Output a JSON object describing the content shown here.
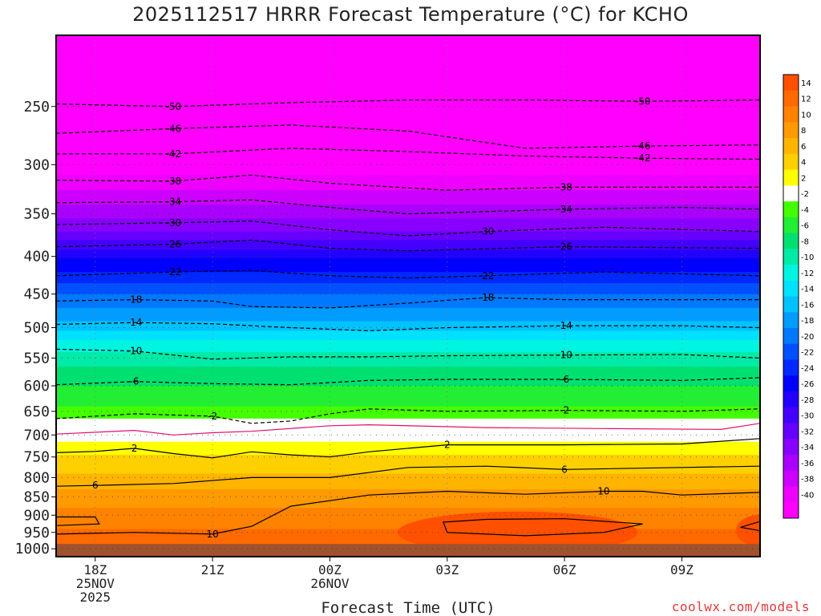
{
  "title": "2025112517 HRRR Forecast Temperature (°C) for KCHO",
  "credit": "coolwx.com/models",
  "chart_data": {
    "type": "heatmap",
    "title": "2025112517 HRRR Forecast Temperature (°C) for KCHO",
    "xlabel": "Forecast Time (UTC)",
    "ylabel": "",
    "x_ticks": [
      {
        "hour": 18,
        "lines": [
          "18Z",
          "25NOV",
          "2025"
        ]
      },
      {
        "hour": 21,
        "lines": [
          "21Z"
        ]
      },
      {
        "hour": 24,
        "lines": [
          "00Z",
          "26NOV"
        ]
      },
      {
        "hour": 27,
        "lines": [
          "03Z"
        ]
      },
      {
        "hour": 30,
        "lines": [
          "06Z"
        ]
      },
      {
        "hour": 33,
        "lines": [
          "09Z"
        ]
      }
    ],
    "xlim": [
      17,
      35
    ],
    "y_ticks": [
      "250",
      "300",
      "350",
      "400",
      "450",
      "500",
      "550",
      "600",
      "650",
      "700",
      "750",
      "800",
      "850",
      "900",
      "950",
      "1000"
    ],
    "ylim_hpa": [
      200,
      1025
    ],
    "y_scale": "log",
    "surface_pressure_hpa": 1000,
    "grid": "dotted",
    "colorbar": {
      "labels": [
        "14",
        "12",
        "10",
        "8",
        "6",
        "4",
        "2",
        "-2",
        "-4",
        "-6",
        "-8",
        "-10",
        "-12",
        "-14",
        "-16",
        "-18",
        "-20",
        "-22",
        "-24",
        "-26",
        "-28",
        "-30",
        "-32",
        "-34",
        "-36",
        "-38",
        "-40"
      ],
      "colors": [
        "#ff5000",
        "#ff6a00",
        "#ff8200",
        "#ff9a00",
        "#ffb400",
        "#ffd000",
        "#ffff00",
        "#ffffff",
        "#44ff00",
        "#22ee33",
        "#00e070",
        "#00eaa8",
        "#00f5e0",
        "#00e0ff",
        "#00c2ff",
        "#009cff",
        "#0078ff",
        "#0050ff",
        "#0028ff",
        "#0000ff",
        "#2200ff",
        "#4400ff",
        "#6600ff",
        "#8800ff",
        "#aa00ff",
        "#cc00ff",
        "#ee00ff",
        "#ff00ff"
      ]
    },
    "contours": [
      {
        "label": "-50",
        "dashed": true,
        "pts": [
          [
            17,
            248
          ],
          [
            20,
            250
          ],
          [
            23,
            247
          ],
          [
            26,
            245
          ],
          [
            29,
            245
          ],
          [
            32,
            246
          ],
          [
            35,
            245
          ]
        ]
      },
      {
        "label": "-46",
        "dashed": true,
        "pts": [
          [
            17,
            272
          ],
          [
            20,
            268
          ],
          [
            23,
            265
          ],
          [
            26,
            270
          ],
          [
            29,
            285
          ],
          [
            32,
            283
          ],
          [
            35,
            282
          ]
        ]
      },
      {
        "label": "-42",
        "dashed": true,
        "pts": [
          [
            17,
            290
          ],
          [
            20,
            290
          ],
          [
            23,
            285
          ],
          [
            26,
            288
          ],
          [
            29,
            292
          ],
          [
            32,
            294
          ],
          [
            35,
            295
          ]
        ]
      },
      {
        "label": "-38",
        "dashed": true,
        "pts": [
          [
            17,
            315
          ],
          [
            20,
            316
          ],
          [
            22,
            310
          ],
          [
            24,
            318
          ],
          [
            27,
            325
          ],
          [
            30,
            322
          ],
          [
            35,
            322
          ]
        ]
      },
      {
        "label": "-34",
        "dashed": true,
        "pts": [
          [
            17,
            338
          ],
          [
            20,
            337
          ],
          [
            22,
            335
          ],
          [
            24,
            343
          ],
          [
            26,
            350
          ],
          [
            30,
            345
          ],
          [
            33,
            343
          ],
          [
            35,
            345
          ]
        ]
      },
      {
        "label": "-30",
        "dashed": true,
        "pts": [
          [
            17,
            362
          ],
          [
            20,
            360
          ],
          [
            22,
            358
          ],
          [
            24,
            368
          ],
          [
            26,
            375
          ],
          [
            28,
            370
          ],
          [
            31,
            365
          ],
          [
            35,
            370
          ]
        ]
      },
      {
        "label": "-26",
        "dashed": true,
        "pts": [
          [
            17,
            388
          ],
          [
            20,
            385
          ],
          [
            22,
            380
          ],
          [
            24,
            390
          ],
          [
            26,
            393
          ],
          [
            30,
            388
          ],
          [
            35,
            390
          ]
        ]
      },
      {
        "label": "-22",
        "dashed": true,
        "pts": [
          [
            17,
            425
          ],
          [
            20,
            420
          ],
          [
            22,
            418
          ],
          [
            24,
            425
          ],
          [
            26,
            428
          ],
          [
            28,
            425
          ],
          [
            31,
            420
          ],
          [
            35,
            425
          ]
        ]
      },
      {
        "label": "-18",
        "dashed": true,
        "pts": [
          [
            17,
            460
          ],
          [
            19,
            458
          ],
          [
            21,
            460
          ],
          [
            22,
            468
          ],
          [
            24,
            470
          ],
          [
            26,
            463
          ],
          [
            28,
            455
          ],
          [
            30,
            458
          ],
          [
            35,
            458
          ]
        ]
      },
      {
        "label": "-14",
        "dashed": true,
        "pts": [
          [
            17,
            495
          ],
          [
            19,
            492
          ],
          [
            21,
            494
          ],
          [
            23,
            500
          ],
          [
            25,
            505
          ],
          [
            27,
            500
          ],
          [
            30,
            497
          ],
          [
            33,
            497
          ],
          [
            35,
            500
          ]
        ]
      },
      {
        "label": "-10",
        "dashed": true,
        "pts": [
          [
            17,
            535
          ],
          [
            19,
            538
          ],
          [
            21,
            552
          ],
          [
            23,
            548
          ],
          [
            25,
            548
          ],
          [
            27,
            546
          ],
          [
            30,
            545
          ],
          [
            33,
            544
          ],
          [
            35,
            550
          ]
        ]
      },
      {
        "label": "-6",
        "dashed": true,
        "pts": [
          [
            17,
            598
          ],
          [
            19,
            592
          ],
          [
            21,
            596
          ],
          [
            23,
            598
          ],
          [
            25,
            590
          ],
          [
            27,
            588
          ],
          [
            30,
            588
          ],
          [
            33,
            590
          ],
          [
            35,
            585
          ]
        ]
      },
      {
        "label": "-2",
        "dashed": true,
        "pts": [
          [
            17,
            665
          ],
          [
            19,
            655
          ],
          [
            21,
            660
          ],
          [
            22,
            675
          ],
          [
            23,
            670
          ],
          [
            24,
            655
          ],
          [
            25,
            645
          ],
          [
            27,
            650
          ],
          [
            30,
            648
          ],
          [
            33,
            650
          ],
          [
            35,
            645
          ]
        ]
      },
      {
        "label": "",
        "dashed": false,
        "magenta": true,
        "pts": [
          [
            17,
            698
          ],
          [
            19,
            690
          ],
          [
            20,
            700
          ],
          [
            21,
            695
          ],
          [
            22,
            692
          ],
          [
            24,
            680
          ],
          [
            25,
            678
          ],
          [
            28,
            684
          ],
          [
            31,
            686
          ],
          [
            34,
            688
          ],
          [
            35,
            675
          ]
        ]
      },
      {
        "label": "2",
        "dashed": false,
        "pts": [
          [
            17,
            740
          ],
          [
            18,
            737
          ],
          [
            19,
            730
          ],
          [
            20,
            742
          ],
          [
            21,
            752
          ],
          [
            22,
            738
          ],
          [
            23,
            745
          ],
          [
            24,
            750
          ],
          [
            25,
            738
          ],
          [
            27,
            722
          ],
          [
            30,
            722
          ],
          [
            33,
            720
          ],
          [
            35,
            708
          ]
        ]
      },
      {
        "label": "6",
        "dashed": false,
        "pts": [
          [
            17,
            822
          ],
          [
            18,
            820
          ],
          [
            20,
            815
          ],
          [
            22,
            800
          ],
          [
            24,
            800
          ],
          [
            26,
            775
          ],
          [
            28,
            772
          ],
          [
            30,
            780
          ],
          [
            33,
            775
          ],
          [
            35,
            772
          ]
        ]
      },
      {
        "label": "10",
        "dashed": false,
        "pts": [
          [
            17,
            955
          ],
          [
            19,
            950
          ],
          [
            21,
            955
          ],
          [
            22,
            932
          ],
          [
            23,
            875
          ],
          [
            25,
            845
          ],
          [
            27,
            835
          ],
          [
            29,
            843
          ],
          [
            31,
            835
          ],
          [
            32,
            835
          ],
          [
            33,
            845
          ],
          [
            35,
            838
          ]
        ]
      },
      {
        "label": "",
        "dashed": false,
        "closed": true,
        "pts": [
          [
            17,
            905
          ],
          [
            18,
            905
          ],
          [
            18.1,
            925
          ],
          [
            17,
            930
          ]
        ]
      },
      {
        "label": "",
        "dashed": false,
        "closed": true,
        "pts": [
          [
            26.9,
            920
          ],
          [
            28,
            912
          ],
          [
            30,
            910
          ],
          [
            32,
            925
          ],
          [
            31,
            950
          ],
          [
            29,
            960
          ],
          [
            27,
            950
          ]
        ]
      },
      {
        "label": "",
        "dashed": false,
        "closed": true,
        "pts": [
          [
            35,
            945
          ],
          [
            34.5,
            935
          ],
          [
            35,
            918
          ]
        ]
      }
    ]
  }
}
